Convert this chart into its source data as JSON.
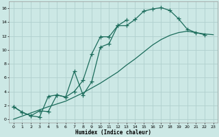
{
  "xlabel": "Humidex (Indice chaleur)",
  "xlim": [
    -0.5,
    23.5
  ],
  "ylim": [
    -0.5,
    17
  ],
  "xticks": [
    0,
    1,
    2,
    3,
    4,
    5,
    6,
    7,
    8,
    9,
    10,
    11,
    12,
    13,
    14,
    15,
    16,
    17,
    18,
    19,
    20,
    21,
    22,
    23
  ],
  "yticks": [
    0,
    2,
    4,
    6,
    8,
    10,
    12,
    14,
    16
  ],
  "bg_color": "#cce8e5",
  "grid_color": "#b0d0ce",
  "line_color": "#1a6b5a",
  "line1_x": [
    0,
    1,
    2,
    3,
    4,
    5,
    6,
    7,
    8,
    9,
    10,
    11,
    12,
    13,
    14,
    15,
    16,
    17,
    18,
    19,
    20,
    21,
    22
  ],
  "line1_y": [
    1.8,
    1.0,
    0.5,
    0.3,
    3.3,
    3.5,
    3.2,
    4.0,
    5.6,
    9.4,
    11.9,
    11.9,
    13.5,
    13.5,
    14.4,
    15.6,
    15.9,
    16.1,
    15.7,
    14.5,
    13.0,
    12.5,
    12.2
  ],
  "line2_x": [
    0,
    1,
    2,
    3,
    4,
    5,
    6,
    7,
    8,
    9,
    10,
    11,
    12,
    13
  ],
  "line2_y": [
    1.8,
    1.0,
    0.5,
    1.2,
    1.1,
    3.5,
    3.2,
    6.9,
    3.5,
    5.4,
    10.4,
    10.9,
    13.5,
    14.3
  ],
  "line3_x": [
    0,
    4,
    5,
    6,
    7,
    8,
    9,
    10,
    11,
    12,
    13,
    14,
    15,
    16,
    17,
    18,
    19,
    20,
    21,
    22,
    23
  ],
  "line3_y": [
    0,
    1.8,
    2.2,
    2.6,
    3.2,
    3.8,
    4.5,
    5.2,
    6.0,
    6.8,
    7.8,
    8.7,
    9.7,
    10.7,
    11.5,
    12.1,
    12.5,
    12.7,
    12.5,
    12.3,
    12.2
  ]
}
